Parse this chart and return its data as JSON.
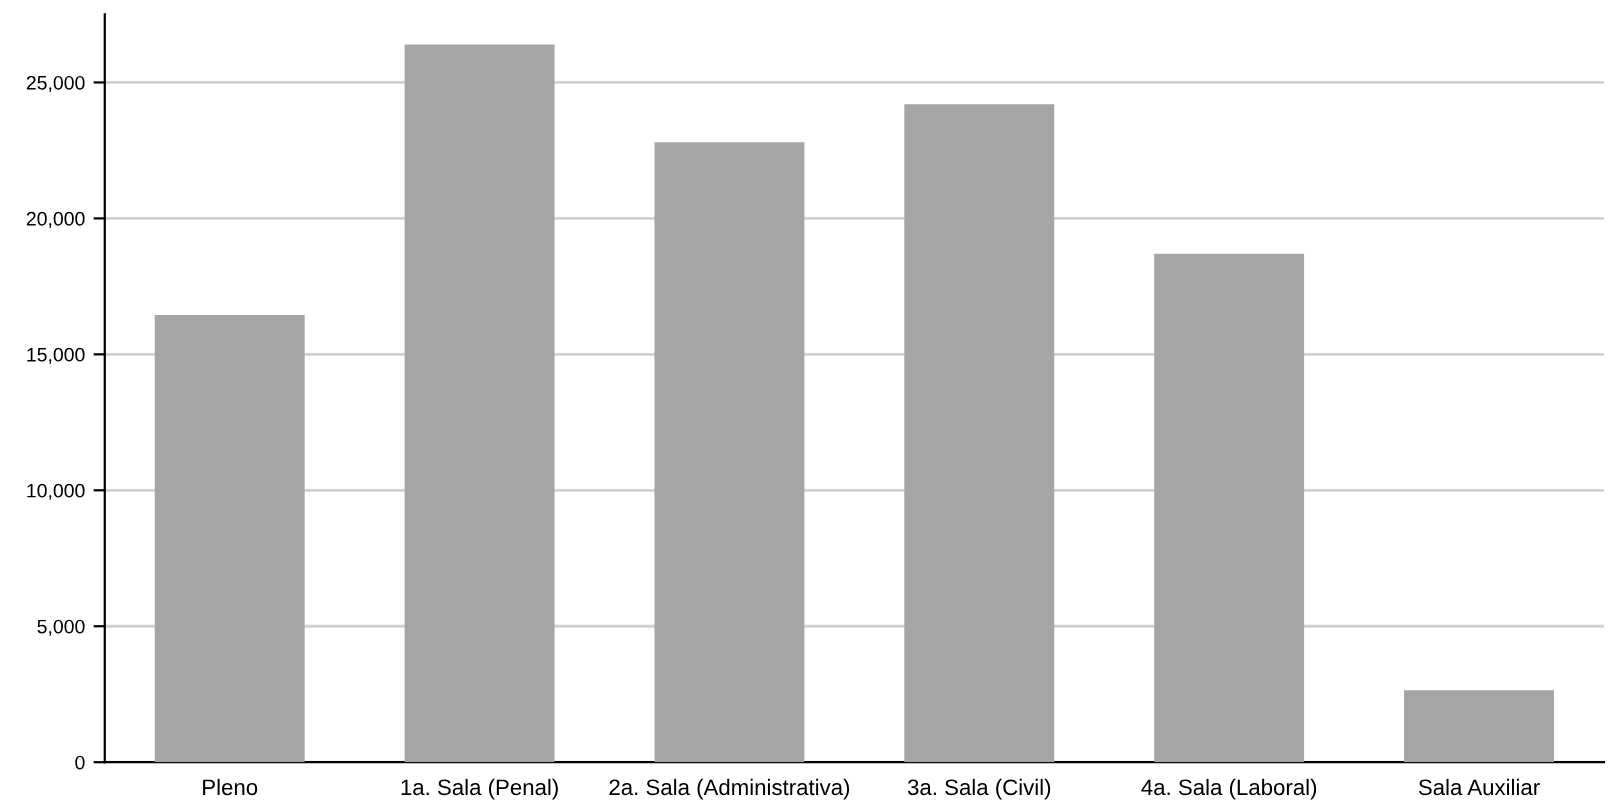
{
  "chart_data": {
    "type": "bar",
    "categories": [
      "Pleno",
      "1a. Sala (Penal)",
      "2a. Sala (Administrativa)",
      "3a. Sala (Civil)",
      "4a. Sala (Laboral)",
      "Sala Auxiliar"
    ],
    "values": [
      16450,
      26400,
      22800,
      24200,
      18700,
      2650
    ],
    "color": "#a5a5a7",
    "ylim": [
      0,
      27500
    ],
    "yticks": [
      {
        "value": 0,
        "label": "0"
      },
      {
        "value": 5000,
        "label": "5,000"
      },
      {
        "value": 10000,
        "label": "10,000"
      },
      {
        "value": 15000,
        "label": "15,000"
      },
      {
        "value": 20000,
        "label": "20,000"
      },
      {
        "value": 25000,
        "label": "25,000"
      }
    ],
    "grid": "y"
  }
}
